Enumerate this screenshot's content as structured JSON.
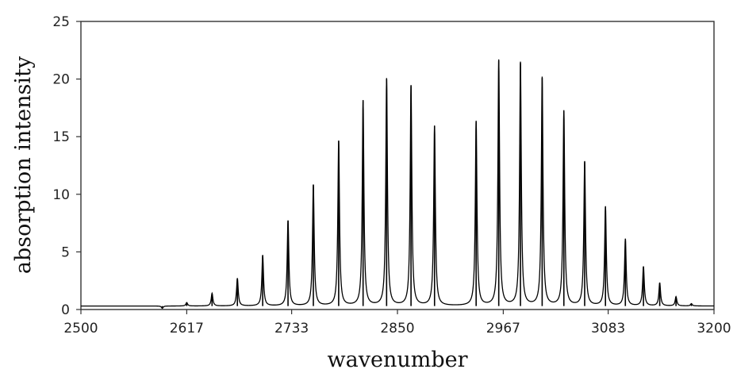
{
  "chart_data": {
    "type": "line",
    "title": "",
    "xlabel": "wavenumber",
    "ylabel": "absorption intensity",
    "xlim": [
      2500,
      3200
    ],
    "ylim": [
      0,
      25
    ],
    "x_ticks": [
      "2500",
      "2617",
      "2733",
      "2850",
      "2967",
      "3083",
      "3200"
    ],
    "y_ticks": [
      "0",
      "5",
      "10",
      "15",
      "20",
      "25"
    ],
    "grid": false,
    "legend": "none",
    "line_color": "#000000",
    "baseline": 0.3,
    "series": [
      {
        "peaks": [
          {
            "x": 2590,
            "y": 0.1
          },
          {
            "x": 2617,
            "y": 0.6
          },
          {
            "x": 2645,
            "y": 1.4
          },
          {
            "x": 2673,
            "y": 2.7
          },
          {
            "x": 2701,
            "y": 4.7
          },
          {
            "x": 2729,
            "y": 7.7
          },
          {
            "x": 2757,
            "y": 10.8
          },
          {
            "x": 2785,
            "y": 14.6
          },
          {
            "x": 2812,
            "y": 18.1
          },
          {
            "x": 2838,
            "y": 20.0
          },
          {
            "x": 2865,
            "y": 19.4
          },
          {
            "x": 2891,
            "y": 15.9
          },
          {
            "x": 2937,
            "y": 16.3
          },
          {
            "x": 2962,
            "y": 21.6
          },
          {
            "x": 2986,
            "y": 21.4
          },
          {
            "x": 3010,
            "y": 20.1
          },
          {
            "x": 3034,
            "y": 17.2
          },
          {
            "x": 3057,
            "y": 12.8
          },
          {
            "x": 3080,
            "y": 8.9
          },
          {
            "x": 3102,
            "y": 6.1
          },
          {
            "x": 3122,
            "y": 3.7
          },
          {
            "x": 3140,
            "y": 2.3
          },
          {
            "x": 3158,
            "y": 1.1
          },
          {
            "x": 3175,
            "y": 0.5
          },
          {
            "x": 3191,
            "y": 0.3
          }
        ]
      }
    ]
  }
}
